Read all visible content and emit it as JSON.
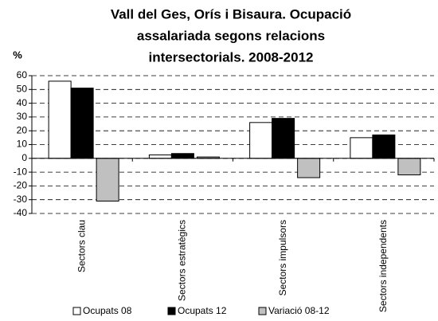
{
  "chart_data": {
    "type": "bar",
    "title": [
      "Vall del Ges, Orís i Bisaura. Ocupació",
      "assalariada segons relacions",
      "intersectorials. 2008-2012"
    ],
    "y_label": "%",
    "categories": [
      "Sectors clau",
      "Sectors estratègics",
      "Sectors impulsors",
      "Sectors independents"
    ],
    "series": [
      {
        "name": "Ocupats 08",
        "color": "#ffffff",
        "values": [
          56,
          2.5,
          26,
          15
        ]
      },
      {
        "name": "Ocupats 12",
        "color": "#000000",
        "values": [
          51,
          3.5,
          29,
          17
        ]
      },
      {
        "name": "Variació 08-12",
        "color": "#c0c0c0",
        "values": [
          -31,
          1,
          -14,
          -12
        ]
      }
    ],
    "ylim": [
      -40,
      60
    ],
    "yticks": [
      -40,
      -30,
      -20,
      -10,
      0,
      10,
      20,
      30,
      40,
      50,
      60
    ],
    "grid": true,
    "legend": "bottom"
  }
}
